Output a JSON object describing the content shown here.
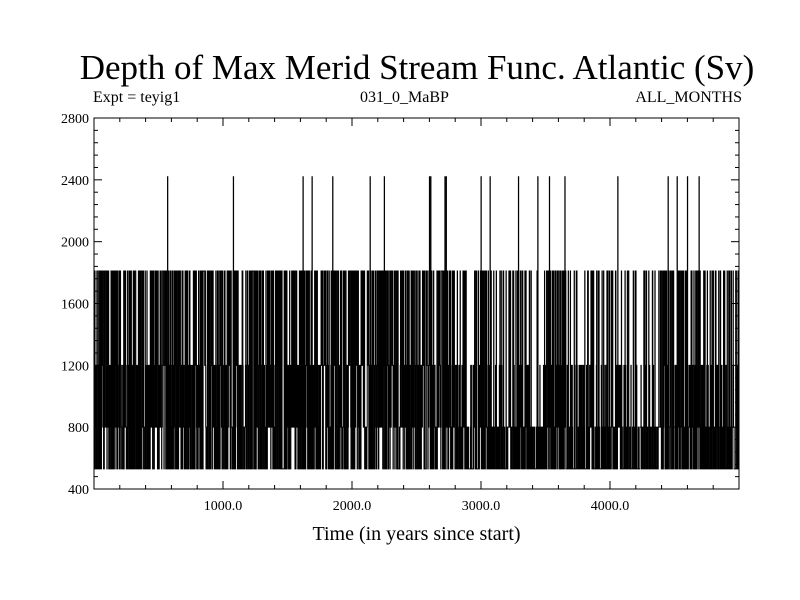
{
  "chart_data": {
    "type": "line",
    "title": "Depth of Max Merid Stream Func. Atlantic (Sv)",
    "subtitles": {
      "left": "Expt = teyig1",
      "center": "031_0_MaBP",
      "right": "ALL_MONTHS"
    },
    "xlabel": "Time (in years since start)",
    "ylabel": "",
    "xlim": [
      0,
      5000
    ],
    "ylim": [
      400,
      2800
    ],
    "x_ticks": [
      {
        "value": 1000,
        "label": "1000.0"
      },
      {
        "value": 2000,
        "label": "2000.0"
      },
      {
        "value": 3000,
        "label": "3000.0"
      },
      {
        "value": 4000,
        "label": "4000.0"
      }
    ],
    "y_ticks": [
      {
        "value": 400,
        "label": "400"
      },
      {
        "value": 800,
        "label": "800"
      },
      {
        "value": 1200,
        "label": "1200"
      },
      {
        "value": 1600,
        "label": "1600"
      },
      {
        "value": 2000,
        "label": "2000"
      },
      {
        "value": 2400,
        "label": "2400"
      },
      {
        "value": 2800,
        "label": "2800"
      }
    ],
    "discrete_levels": [
      530,
      800,
      1200,
      1810,
      2420
    ],
    "spike_years_2420": [
      570,
      1080,
      1620,
      1690,
      1850,
      2140,
      2250,
      2600,
      2610,
      2720,
      2730,
      3000,
      3070,
      3290,
      3440,
      3530,
      3650,
      4060,
      4450,
      4520,
      4600,
      4690
    ],
    "series": [
      {
        "values_description": "",
        "x_start": 0,
        "x_end": 5000,
        "line_color": "#000000"
      }
    ],
    "grid": false
  }
}
